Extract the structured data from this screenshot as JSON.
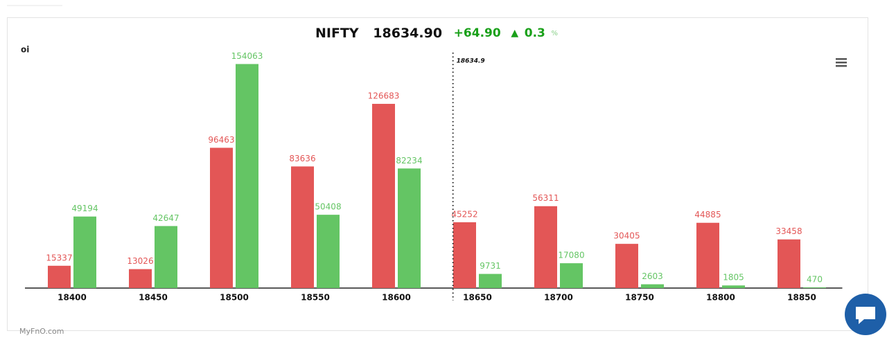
{
  "chart_data": {
    "type": "bar",
    "title_parts": {
      "symbol": "NIFTY",
      "price": "18634.90",
      "change": "+64.90",
      "pct": "0.3",
      "pct_unit": "%"
    },
    "y_label": "oi",
    "categories": [
      "18400",
      "18450",
      "18500",
      "18550",
      "18600",
      "18650",
      "18700",
      "18750",
      "18800",
      "18850"
    ],
    "series": [
      {
        "color": "#e35656",
        "values": [
          15337,
          13026,
          96463,
          83636,
          126683,
          45252,
          56311,
          30405,
          44885,
          33458
        ]
      },
      {
        "color": "#64c564",
        "values": [
          49194,
          42647,
          154063,
          50408,
          82234,
          9731,
          17080,
          2603,
          1805,
          470
        ]
      }
    ],
    "spot": 18634.9,
    "ylim": [
      0,
      160000
    ],
    "watermark": "MyFnO.com"
  }
}
